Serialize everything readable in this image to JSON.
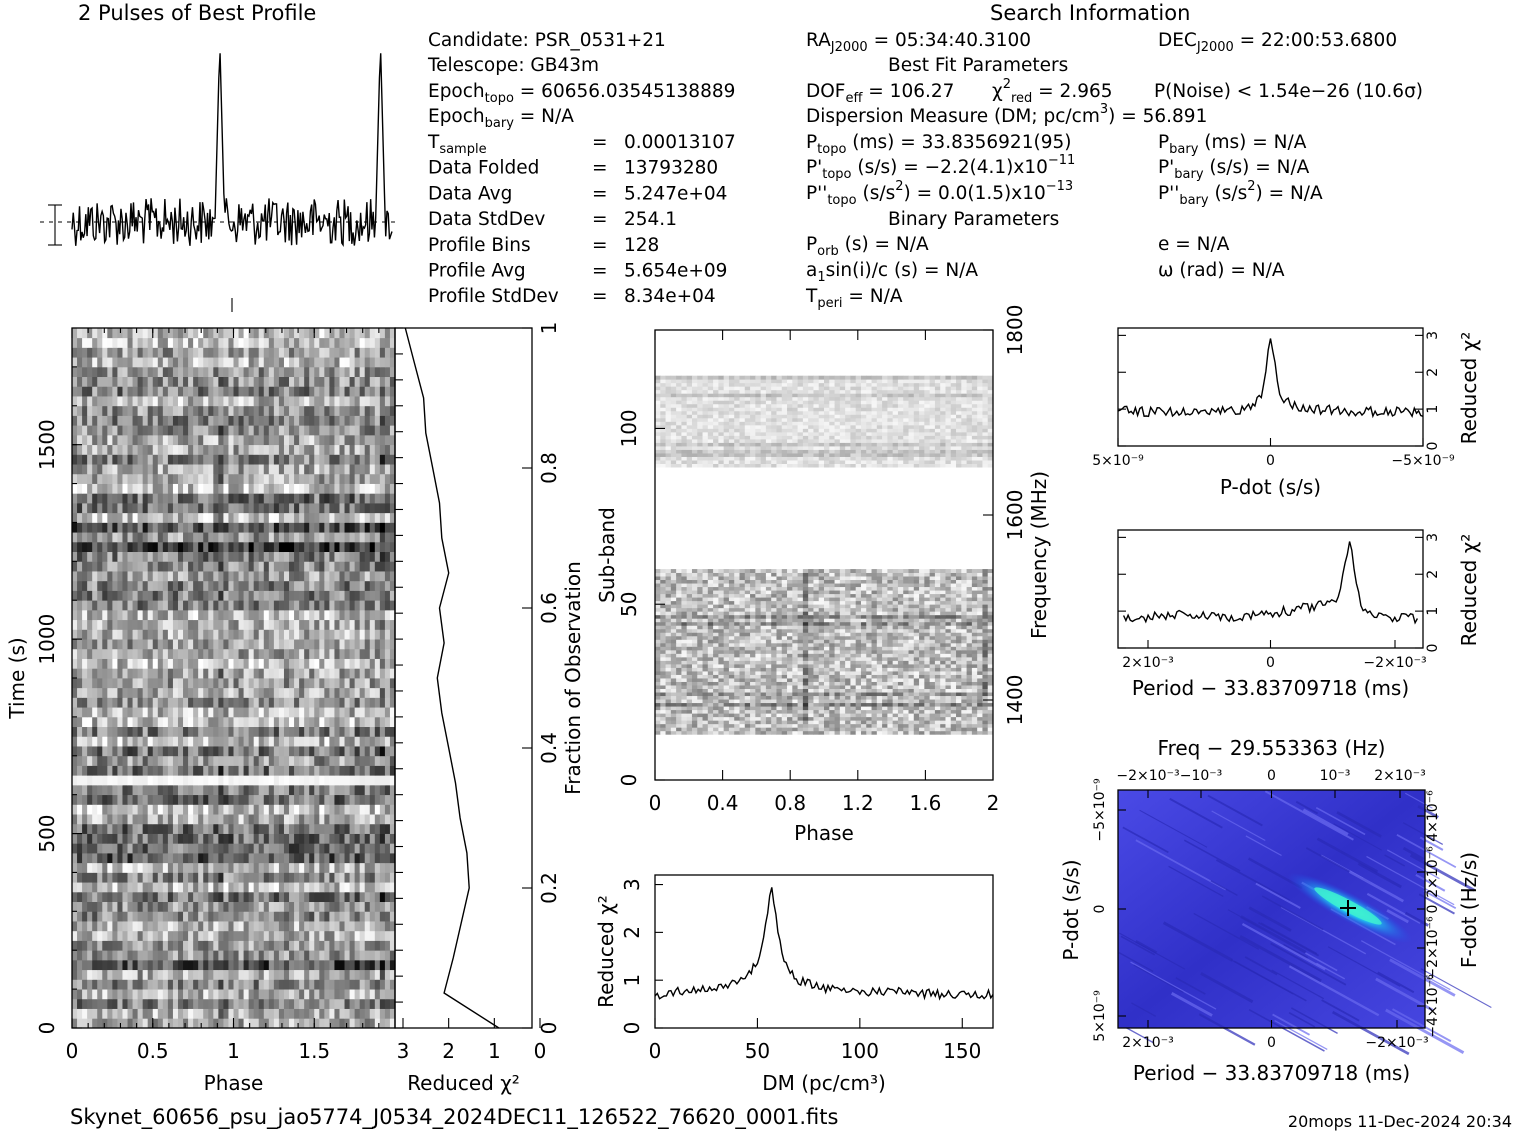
{
  "chart_data": [
    {
      "type": "line",
      "name": "profile",
      "title": "2 Pulses of Best Profile",
      "xlabel": "",
      "ylabel": "",
      "x": [
        0,
        0.25,
        0.5,
        0.75,
        0.9,
        0.93,
        0.96,
        1.0,
        1.25,
        1.5,
        1.75,
        1.9,
        1.93,
        1.96,
        2.0
      ],
      "y": [
        0.05,
        0.06,
        0.04,
        0.05,
        0.1,
        1.0,
        0.12,
        0.05,
        0.06,
        0.04,
        0.05,
        0.1,
        0.88,
        0.12,
        0.05
      ]
    },
    {
      "type": "heatmap",
      "name": "time-phase",
      "xlabel": "Phase",
      "ylabel": "Time (s)",
      "y2label": "Fraction of Observation",
      "xlim": [
        0,
        2
      ],
      "ylim": [
        0,
        1800
      ],
      "x_ticks": [
        "0",
        "0.5",
        "1",
        "1.5"
      ],
      "y_ticks": [
        "0",
        "500",
        "1000",
        "1500"
      ],
      "y2_ticks": [
        "0",
        "0.2",
        "0.4",
        "0.6",
        "0.8",
        "1"
      ]
    },
    {
      "type": "line",
      "name": "time-redchi",
      "xlabel": "Reduced χ²",
      "x_ticks": [
        "3",
        "2",
        "1",
        "0"
      ],
      "xlim": [
        3,
        0
      ],
      "x": [
        2.95,
        2.75,
        2.55,
        2.5,
        2.35,
        2.2,
        2.15,
        2.0,
        2.2,
        2.1,
        2.25,
        2.15,
        2.0,
        1.85,
        1.75,
        1.6,
        1.55,
        1.9,
        2.1,
        0.9
      ],
      "y": [
        1.0,
        0.95,
        0.9,
        0.85,
        0.8,
        0.75,
        0.7,
        0.65,
        0.6,
        0.55,
        0.5,
        0.45,
        0.4,
        0.35,
        0.3,
        0.25,
        0.2,
        0.1,
        0.05,
        0.0
      ]
    },
    {
      "type": "heatmap",
      "name": "subband-phase",
      "xlabel": "Phase",
      "ylabel": "Sub-band",
      "y2label": "Frequency (MHz)",
      "xlim": [
        0,
        2
      ],
      "ylim": [
        0,
        128
      ],
      "x_ticks": [
        "0",
        "0.4",
        "0.8",
        "1.2",
        "1.6",
        "2"
      ],
      "y_ticks": [
        "0",
        "50",
        "100"
      ],
      "y2_ticks": [
        "1400",
        "1600",
        "1800"
      ]
    },
    {
      "type": "line",
      "name": "dm-redchi",
      "xlabel": "DM (pc/cm³)",
      "ylabel": "Reduced χ²",
      "xlim": [
        0,
        165
      ],
      "ylim": [
        0,
        3.2
      ],
      "x_ticks": [
        "0",
        "50",
        "100",
        "150"
      ],
      "y_ticks": [
        "0",
        "1",
        "2",
        "3"
      ],
      "x": [
        0,
        10,
        20,
        30,
        40,
        45,
        50,
        53,
        55,
        57,
        59,
        62,
        65,
        70,
        80,
        90,
        100,
        120,
        140,
        165
      ],
      "y": [
        0.65,
        0.75,
        0.8,
        0.85,
        0.95,
        1.1,
        1.35,
        1.8,
        2.4,
        2.95,
        2.3,
        1.6,
        1.25,
        1.0,
        0.85,
        0.8,
        0.75,
        0.75,
        0.7,
        0.7
      ]
    },
    {
      "type": "line",
      "name": "pdot-redchi",
      "xlabel": "P-dot (s/s)",
      "ylabel": "Reduced χ²",
      "x_ticks": [
        "5×10⁻⁹",
        "0",
        "−5×10⁻⁹"
      ],
      "y_ticks": [
        "0",
        "1",
        "2",
        "3"
      ],
      "ylim": [
        0,
        3.2
      ],
      "x": [
        -5e-09,
        -3e-09,
        -1e-09,
        -3e-10,
        0,
        3e-10,
        1e-09,
        3e-09,
        5e-09
      ],
      "y": [
        0.9,
        0.95,
        1.0,
        1.3,
        3.0,
        1.3,
        0.95,
        0.9,
        0.95
      ]
    },
    {
      "type": "line",
      "name": "period-redchi",
      "xlabel": "Period − 33.83709718 (ms)",
      "ylabel": "Reduced χ²",
      "x_ticks": [
        "2×10⁻³",
        "0",
        "−2×10⁻³"
      ],
      "y_ticks": [
        "0",
        "1",
        "2",
        "3"
      ],
      "ylim": [
        0,
        3.2
      ],
      "x": [
        0.0026,
        0.0015,
        0.0005,
        0,
        -0.0005,
        -0.0012,
        -0.0014,
        -0.0016,
        -0.002,
        -0.0026
      ],
      "y": [
        0.8,
        0.9,
        0.85,
        0.95,
        1.05,
        1.3,
        3.0,
        1.1,
        0.85,
        0.8
      ]
    },
    {
      "type": "heatmap",
      "name": "period-pdot",
      "title": "Freq − 29.553363 (Hz)",
      "xlabel": "Period − 33.83709718 (ms)",
      "ylabel": "P-dot (s/s)",
      "y2label": "F-dot (Hz/s)",
      "x_ticks": [
        "2×10⁻³",
        "0",
        "−2×10⁻³"
      ],
      "x2_ticks": [
        "−2×10⁻³",
        "−10⁻³",
        "0",
        "10⁻³",
        "2×10⁻³"
      ],
      "y_ticks": [
        "−5×10⁻⁹",
        "0",
        "5×10⁻⁹"
      ],
      "y2_ticks": [
        "4×10⁻⁶",
        "2×10⁻⁶",
        "0",
        "−2×10⁻⁶",
        "−4×10⁻⁶"
      ]
    }
  ],
  "header": {
    "profile_title": "2 Pulses of Best Profile",
    "search_title": "Search Information"
  },
  "candidate": {
    "candidate": "Candidate:  PSR_0531+21",
    "telescope": "Telescope:  GB43m",
    "epoch_topo": "Epoch",
    "epoch_topo_sub": "topo",
    "epoch_topo_val": " = 60656.03545138889",
    "epoch_bary": "Epoch",
    "epoch_bary_sub": "bary",
    "epoch_bary_val": " = N/A",
    "rows": [
      {
        "label": "T",
        "sub": "sample",
        "eq": "=",
        "val": "0.00013107"
      },
      {
        "label": "Data Folded",
        "sub": "",
        "eq": "=",
        "val": "13793280"
      },
      {
        "label": "Data Avg",
        "sub": "",
        "eq": "=",
        "val": "5.247e+04"
      },
      {
        "label": "Data StdDev",
        "sub": "",
        "eq": "=",
        "val": "254.1"
      },
      {
        "label": "Profile Bins",
        "sub": "",
        "eq": "=",
        "val": "128"
      },
      {
        "label": "Profile Avg",
        "sub": "",
        "eq": "=",
        "val": "5.654e+09"
      },
      {
        "label": "Profile StdDev",
        "sub": "",
        "eq": "=",
        "val": "8.34e+04"
      }
    ]
  },
  "search": {
    "ra": "RA",
    "ra_sub": "J2000",
    "ra_val": " = 05:34:40.3100",
    "dec": "DEC",
    "dec_sub": "J2000",
    "dec_val": " = 22:00:53.6800",
    "best_fit_title": "Best Fit Parameters",
    "dof": "DOF",
    "dof_sub": "eff",
    "dof_val": " = 106.27",
    "chi": "χ",
    "chi_sup": "2",
    "chi_sub": "red",
    "chi_val": " = 2.965",
    "pnoise": "P(Noise) < 1.54e−26  (10.6σ)",
    "dm_line": "Dispersion Measure (DM; pc/cm",
    "dm_sup": "3",
    "dm_val": ") = 56.891",
    "ptopo": "P",
    "ptopo_sub": "topo",
    "ptopo_val": " (ms) =  33.8356921(95)",
    "pbary": "P",
    "pbary_sub": "bary",
    "pbary_val": " (ms) = N/A",
    "pdtopo": "P'",
    "pdtopo_sub": "topo",
    "pdtopo_val": " (s/s) = −2.2(4.1)x10",
    "pdtopo_exp": "−11",
    "pdbary": "P'",
    "pdbary_sub": "bary",
    "pdbary_val": " (s/s) = N/A",
    "pddtopo": "P''",
    "pddtopo_sub": "topo",
    "pddtopo_val": " (s/s",
    "pddtopo_sup": "2",
    "pddtopo_val2": ") = 0.0(1.5)x10",
    "pddtopo_exp": "−13",
    "pddbary": "P''",
    "pddbary_sub": "bary",
    "pddbary_val": " (s/s",
    "pddbary_sup": "2",
    "pddbary_val2": ") = N/A",
    "binary_title": "Binary Parameters",
    "porb": "P",
    "porb_sub": "orb",
    "porb_val": " (s) = N/A",
    "ecc": "e = N/A",
    "asini": "a",
    "asini_sub": "1",
    "asini_val": "sin(i)/c (s) = N/A",
    "omega": "ω (rad) = N/A",
    "tperi": "T",
    "tperi_sub": "peri",
    "tperi_val": " = N/A"
  },
  "footer": {
    "filename": "Skynet_60656_psu_jao5774_J0534_2024DEC11_126522_76620_0001.fits",
    "stamp": "20mops 11-Dec-2024 20:34"
  },
  "colors": {
    "ppdot_bg": "#3a3ad8",
    "ppdot_peak": "#20d0e0"
  }
}
